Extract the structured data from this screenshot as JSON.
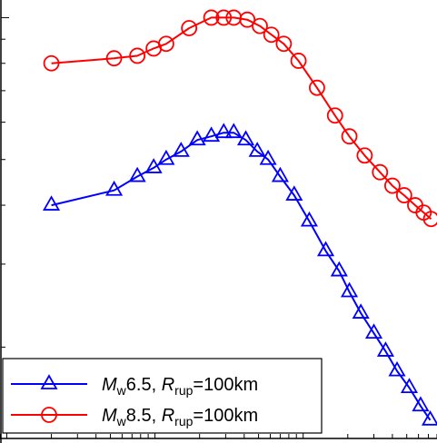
{
  "chart_data": {
    "type": "line",
    "title": "",
    "xlabel": "",
    "ylabel": "",
    "x_scale": "log",
    "y_scale": "log",
    "grid": false,
    "legend_position": "bottom-left",
    "series": [
      {
        "key": "mw65",
        "legend": {
          "m_main": "M",
          "m_sub": "w",
          "m_val": "6.5, ",
          "r_main": "R",
          "r_sub": "rup",
          "r_val": "=100km"
        },
        "color": "#0000ff",
        "marker": "triangle",
        "points": [
          [
            0.2,
            0.4
          ],
          [
            0.53,
            0.43
          ],
          [
            0.76,
            0.46
          ],
          [
            0.98,
            0.48
          ],
          [
            1.19,
            0.5
          ],
          [
            1.5,
            0.52
          ],
          [
            1.93,
            0.55
          ],
          [
            2.4,
            0.56
          ],
          [
            2.91,
            0.57
          ],
          [
            3.4,
            0.57
          ],
          [
            4.1,
            0.55
          ],
          [
            4.9,
            0.52
          ],
          [
            5.8,
            0.5
          ],
          [
            7.0,
            0.46
          ],
          [
            8.7,
            0.42
          ],
          [
            11.0,
            0.37
          ],
          [
            14.2,
            0.32
          ],
          [
            17.5,
            0.29
          ],
          [
            20.5,
            0.262
          ],
          [
            24.5,
            0.236
          ],
          [
            30.0,
            0.214
          ],
          [
            36.0,
            0.196
          ],
          [
            43.0,
            0.178
          ],
          [
            52.0,
            0.164
          ],
          [
            62.0,
            0.15
          ],
          [
            72.0,
            0.14
          ]
        ]
      },
      {
        "key": "mw85",
        "legend": {
          "m_main": "M",
          "m_sub": "w",
          "m_val": "8.5, ",
          "r_main": "R",
          "r_sub": "rup",
          "r_val": "=100km"
        },
        "color": "#ff0000",
        "marker": "circle",
        "points": [
          [
            0.2,
            0.8
          ],
          [
            0.53,
            0.82
          ],
          [
            0.76,
            0.83
          ],
          [
            0.98,
            0.86
          ],
          [
            1.19,
            0.88
          ],
          [
            1.7,
            0.95
          ],
          [
            2.4,
            1.0
          ],
          [
            2.91,
            1.0
          ],
          [
            3.4,
            1.0
          ],
          [
            4.2,
            0.99
          ],
          [
            5.1,
            0.96
          ],
          [
            6.1,
            0.92
          ],
          [
            7.4,
            0.88
          ],
          [
            9.3,
            0.81
          ],
          [
            12.4,
            0.71
          ],
          [
            16.4,
            0.62
          ],
          [
            20.5,
            0.56
          ],
          [
            26.0,
            0.51
          ],
          [
            33.0,
            0.47
          ],
          [
            40.0,
            0.44
          ],
          [
            48.0,
            0.42
          ],
          [
            57.0,
            0.4
          ],
          [
            65.0,
            0.386
          ],
          [
            73.0,
            0.374
          ]
        ]
      }
    ]
  }
}
